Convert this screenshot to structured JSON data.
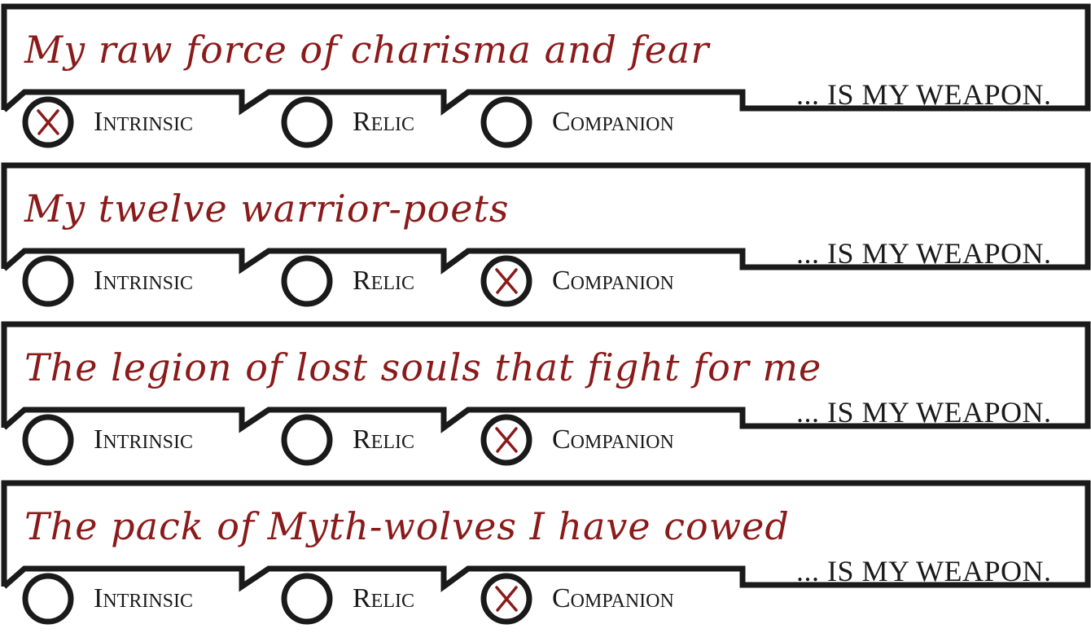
{
  "suffix": "... IS MY WEAPON.",
  "option_labels": {
    "intrinsic": "Intrinsic",
    "relic": "Relic",
    "companion": "Companion"
  },
  "accent_color": "#8b1a1a",
  "entries": [
    {
      "weapon": "My raw force of charisma and fear",
      "selected": "intrinsic"
    },
    {
      "weapon": "My twelve warrior-poets",
      "selected": "companion"
    },
    {
      "weapon": "The legion of lost souls that fight for me",
      "selected": "companion"
    },
    {
      "weapon": "The pack of Myth-wolves I have cowed",
      "selected": "companion"
    }
  ]
}
